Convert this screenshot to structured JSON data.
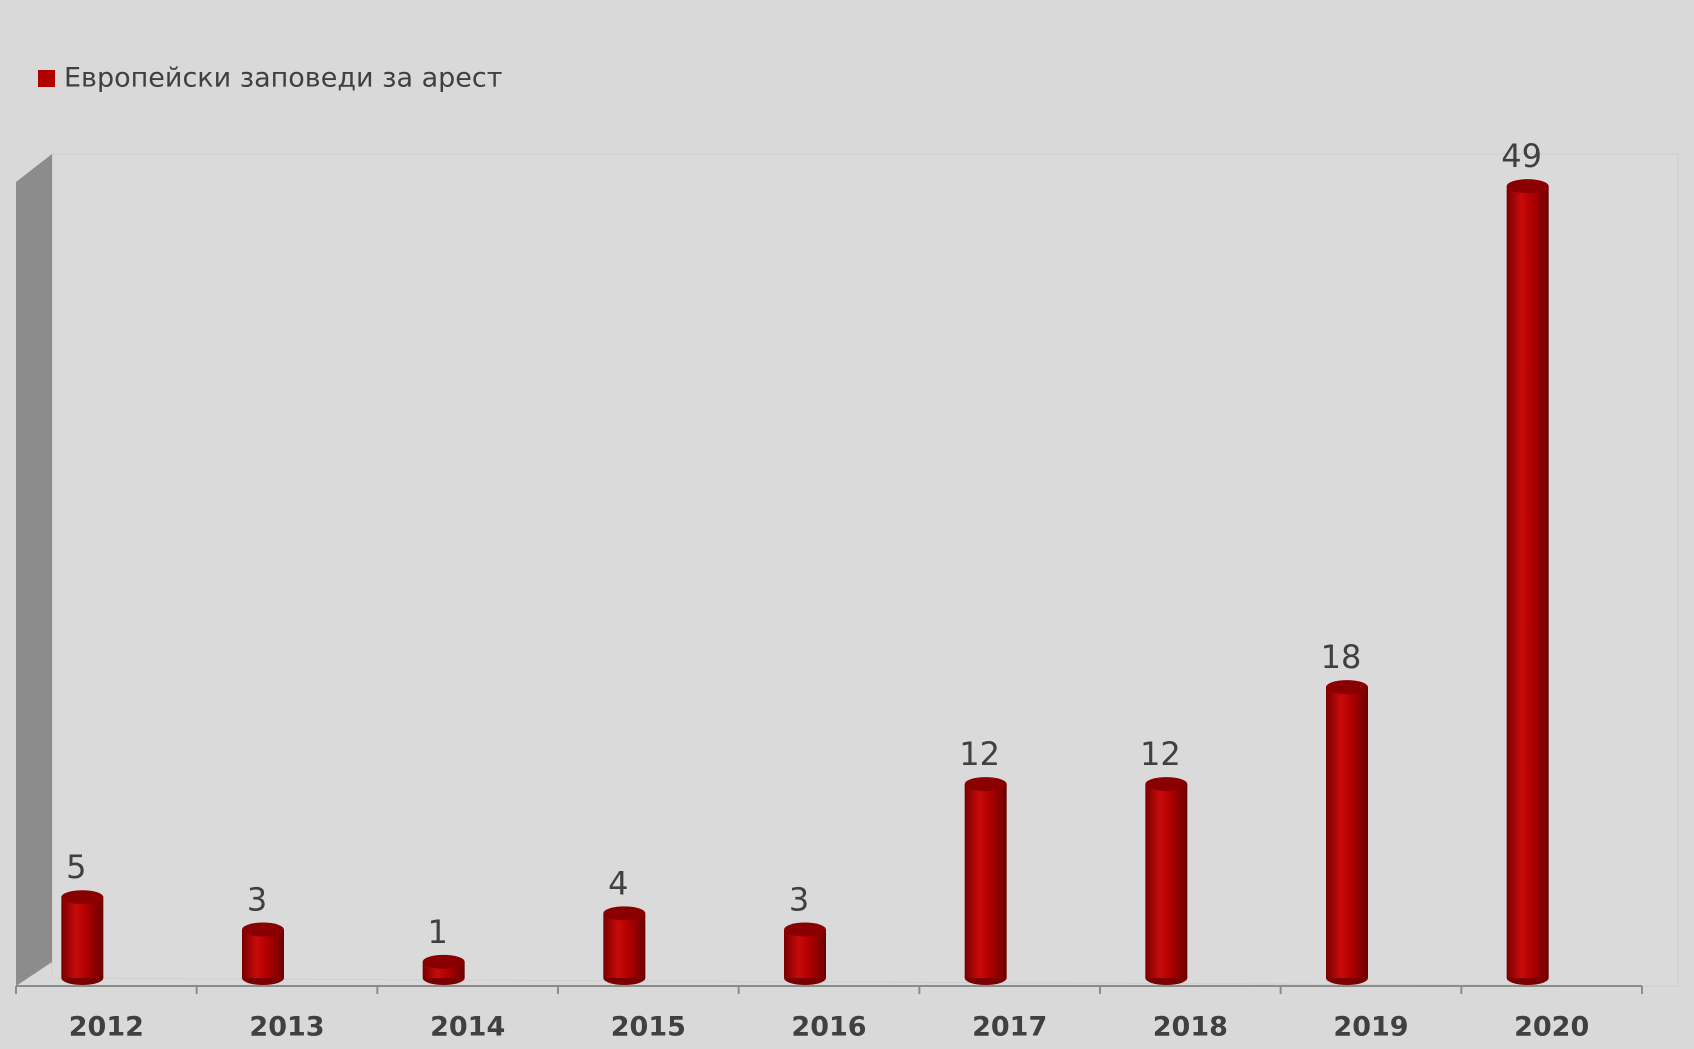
{
  "chart_data": {
    "type": "bar",
    "categories": [
      "2012",
      "2013",
      "2014",
      "2015",
      "2016",
      "2017",
      "2018",
      "2019",
      "2020"
    ],
    "series": [
      {
        "name": "Европейски заповеди за арест",
        "color": "#b00000",
        "values": [
          5,
          3,
          1,
          4,
          3,
          12,
          12,
          18,
          49
        ]
      }
    ],
    "ylim": [
      0,
      50
    ],
    "legend": "top-left",
    "grid": false
  }
}
